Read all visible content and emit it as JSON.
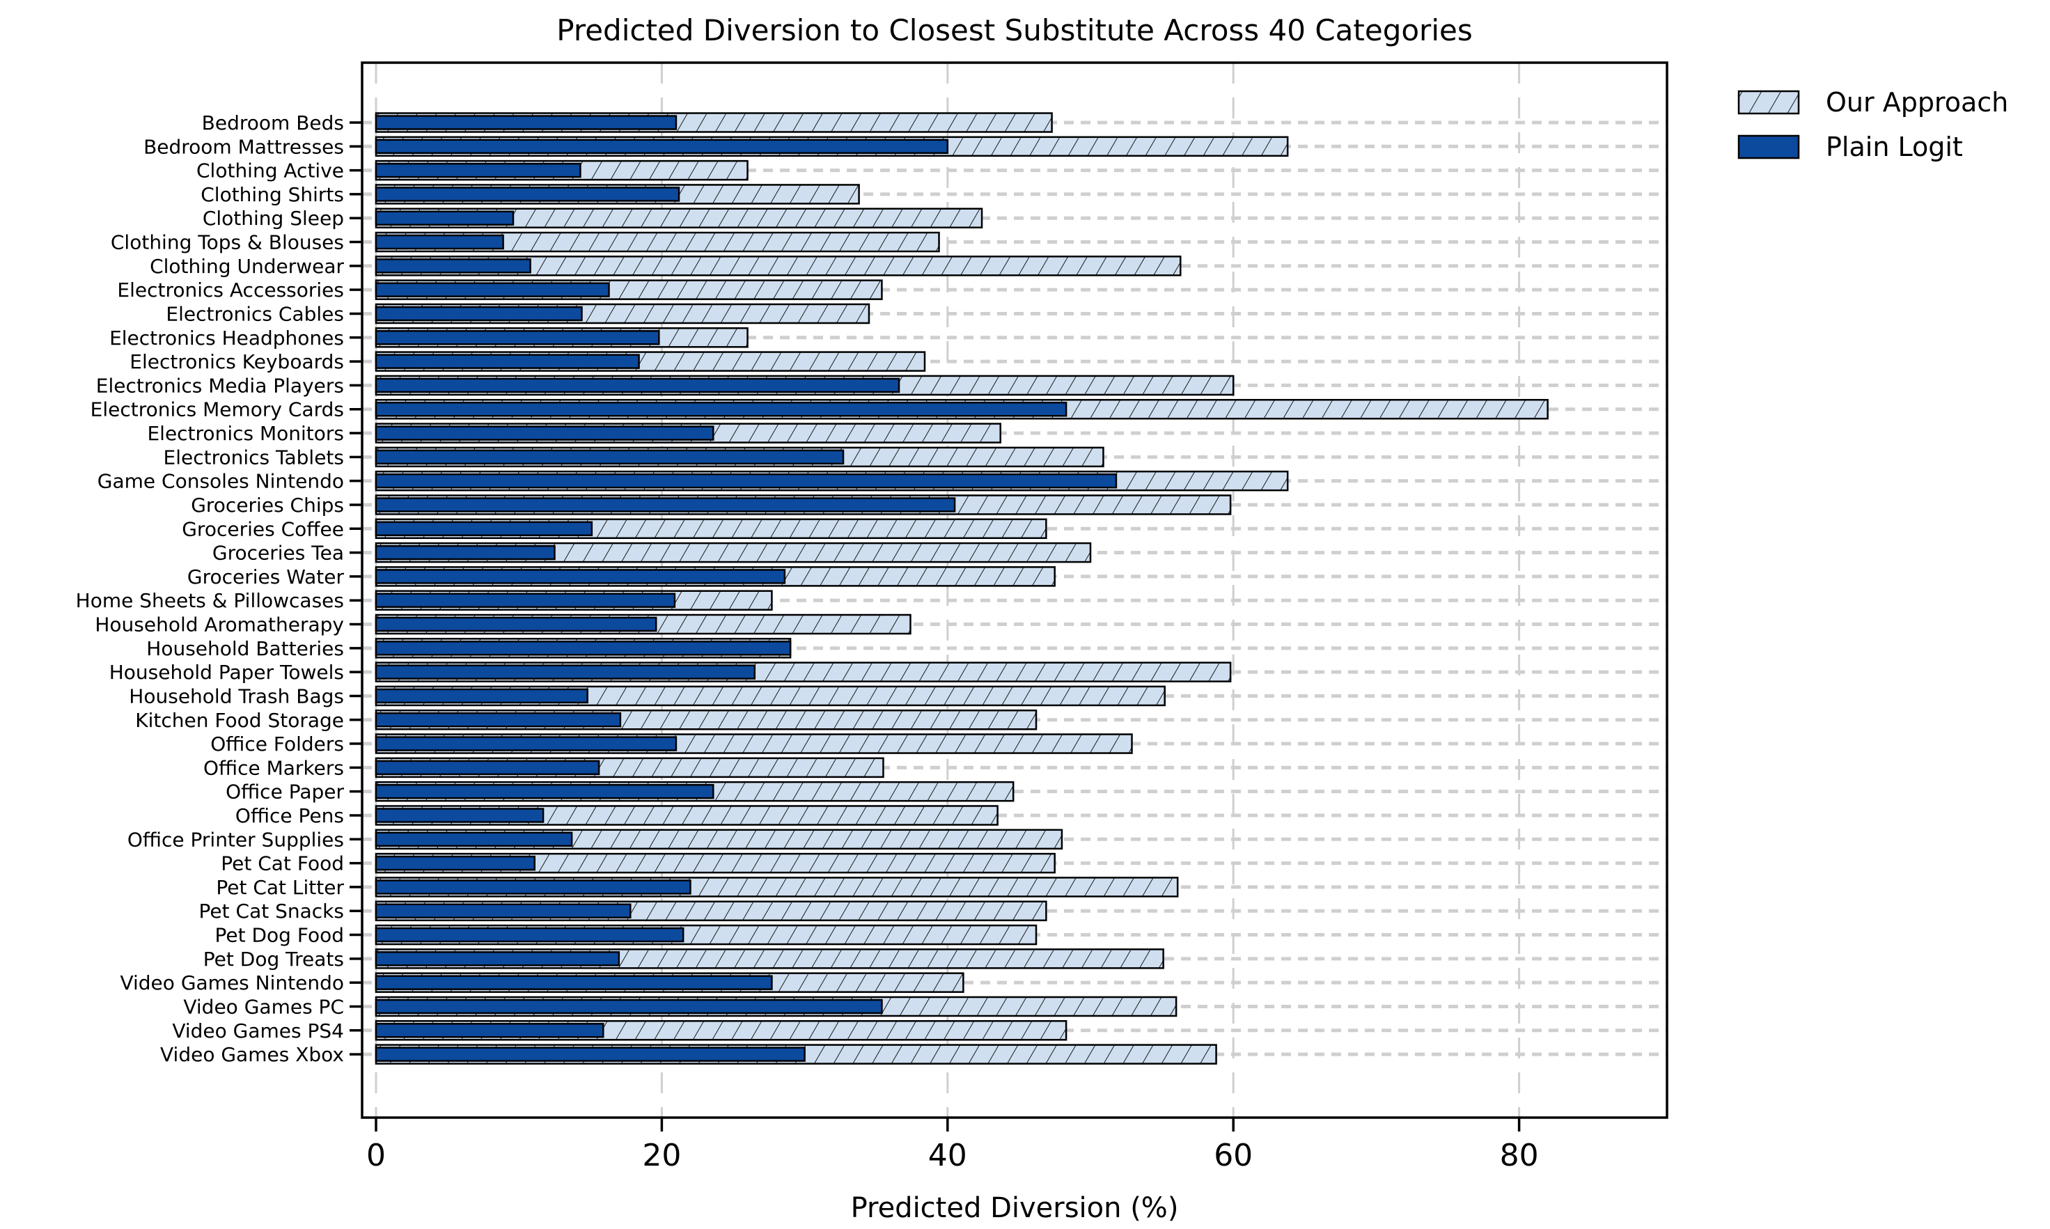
{
  "title": "Predicted Diversion to Closest Substitute Across 40 Categories",
  "xlabel": "Predicted Diversion (%)",
  "legend": {
    "our_approach": "Our Approach",
    "plain_logit": "Plain Logit"
  },
  "colors": {
    "our_approach_fill": "#cfdff0",
    "plain_logit_fill": "#0c4a9e",
    "bar_edge": "#000000",
    "hatch": "#1a1a1a",
    "grid": "#cfcfcf",
    "axis": "#000000"
  },
  "chart_data": {
    "type": "bar",
    "orientation": "horizontal",
    "title": "Predicted Diversion to Closest Substitute Across 40 Categories",
    "xlabel": "Predicted Diversion (%)",
    "ylabel": "",
    "xlim": [
      0,
      90
    ],
    "xticks": [
      0,
      20,
      40,
      60,
      80
    ],
    "grid": "dashed",
    "legend_position": "upper right outside",
    "categories": [
      "Bedroom Beds",
      "Bedroom Mattresses",
      "Clothing Active",
      "Clothing Shirts",
      "Clothing Sleep",
      "Clothing Tops & Blouses",
      "Clothing Underwear",
      "Electronics Accessories",
      "Electronics Cables",
      "Electronics Headphones",
      "Electronics Keyboards",
      "Electronics Media Players",
      "Electronics Memory Cards",
      "Electronics Monitors",
      "Electronics Tablets",
      "Game Consoles Nintendo",
      "Groceries Chips",
      "Groceries Coffee",
      "Groceries Tea",
      "Groceries Water",
      "Home Sheets & Pillowcases",
      "Household Aromatherapy",
      "Household Batteries",
      "Household Paper Towels",
      "Household Trash Bags",
      "Kitchen Food Storage",
      "Office Folders",
      "Office Markers",
      "Office Paper",
      "Office Pens",
      "Office Printer Supplies",
      "Pet Cat Food",
      "Pet Cat Litter",
      "Pet Cat Snacks",
      "Pet Dog Food",
      "Pet Dog Treats",
      "Video Games Nintendo",
      "Video Games PC",
      "Video Games PS4",
      "Video Games Xbox"
    ],
    "series": [
      {
        "name": "Our Approach",
        "style": "light-hatched",
        "values": [
          47.3,
          63.8,
          26.0,
          33.8,
          42.4,
          39.4,
          56.3,
          35.4,
          34.5,
          26.0,
          38.4,
          60.0,
          82.0,
          43.7,
          50.9,
          63.8,
          59.8,
          46.9,
          50.0,
          47.5,
          27.7,
          37.4,
          29.0,
          59.8,
          55.2,
          46.2,
          52.9,
          35.5,
          44.6,
          43.5,
          48.0,
          47.5,
          56.1,
          46.9,
          46.2,
          55.1,
          41.1,
          56.0,
          48.3,
          58.8
        ]
      },
      {
        "name": "Plain Logit",
        "style": "dark-solid",
        "values": [
          21.0,
          40.0,
          14.3,
          21.2,
          9.6,
          8.9,
          10.8,
          16.3,
          14.4,
          19.8,
          18.4,
          36.6,
          48.3,
          23.6,
          32.7,
          51.8,
          40.5,
          15.1,
          12.5,
          28.6,
          20.9,
          19.6,
          29.0,
          26.5,
          14.8,
          17.1,
          21.0,
          15.6,
          23.6,
          11.7,
          13.7,
          11.1,
          22.0,
          17.8,
          21.5,
          17.0,
          27.7,
          35.4,
          15.9,
          30.0
        ]
      }
    ]
  }
}
